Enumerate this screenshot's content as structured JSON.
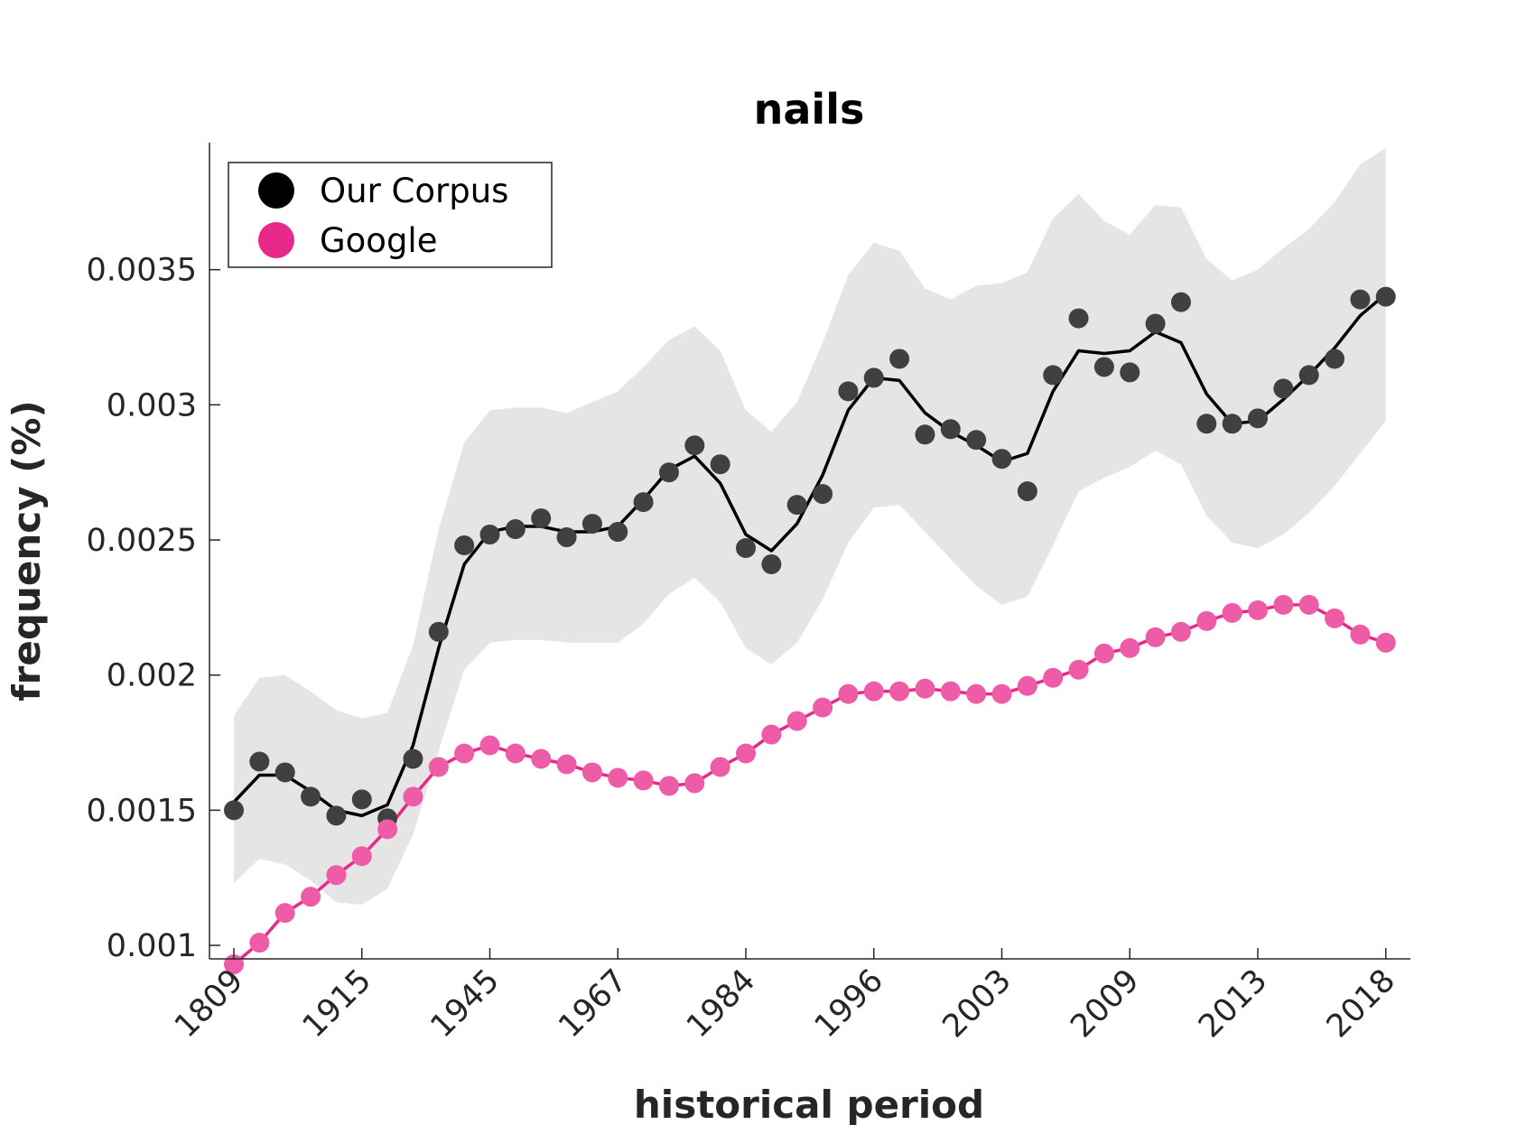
{
  "chart_data": {
    "type": "line",
    "title": "nails",
    "xlabel": "historical period",
    "ylabel": "frequency (%)",
    "x_tick_labels": [
      "1809",
      "1915",
      "1945",
      "1967",
      "1984",
      "1996",
      "2003",
      "2009",
      "2013",
      "2018"
    ],
    "y_ticks": [
      0.001,
      0.0015,
      0.002,
      0.0025,
      0.003,
      0.0035
    ],
    "y_tick_labels": [
      "0.001",
      "0.0015",
      "0.002",
      "0.0025",
      "0.003",
      "0.0035"
    ],
    "ylim": [
      0.00095,
      0.00397
    ],
    "legend_position": "top-left",
    "series": [
      {
        "name": "Our Corpus",
        "color": "#000000",
        "marker_color": "#404040",
        "points": [
          0.0015,
          0.00168,
          0.00164,
          0.00155,
          0.00148,
          0.00154,
          0.00147,
          0.00169,
          0.00216,
          0.00248,
          0.00252,
          0.00254,
          0.00258,
          0.00251,
          0.00256,
          0.00253,
          0.00264,
          0.00275,
          0.00285,
          0.00278,
          0.00247,
          0.00241,
          0.00263,
          0.00267,
          0.00305,
          0.0031,
          0.00317,
          0.00289,
          0.00291,
          0.00287,
          0.0028,
          0.00268,
          0.00311,
          0.00332,
          0.00314,
          0.00312,
          0.0033,
          0.00338,
          0.00293,
          0.00293,
          0.00295,
          0.00306,
          0.00311,
          0.00317,
          0.00339,
          0.0034
        ],
        "smoothed": [
          0.00153,
          0.00163,
          0.00163,
          0.00157,
          0.0015,
          0.00148,
          0.00152,
          0.00174,
          0.0021,
          0.00241,
          0.00253,
          0.00255,
          0.00255,
          0.00253,
          0.00253,
          0.00255,
          0.00265,
          0.00276,
          0.00281,
          0.00271,
          0.00252,
          0.00246,
          0.00256,
          0.00274,
          0.00298,
          0.0031,
          0.00309,
          0.00297,
          0.0029,
          0.00285,
          0.00279,
          0.00282,
          0.00305,
          0.0032,
          0.00319,
          0.0032,
          0.00327,
          0.00323,
          0.00304,
          0.00293,
          0.00294,
          0.00302,
          0.00311,
          0.00321,
          0.00333,
          0.00341
        ],
        "band_upper": [
          0.00185,
          0.00199,
          0.002,
          0.00194,
          0.00187,
          0.00184,
          0.00186,
          0.00211,
          0.00254,
          0.00286,
          0.00298,
          0.00299,
          0.00299,
          0.00297,
          0.00301,
          0.00305,
          0.00314,
          0.00324,
          0.00329,
          0.0032,
          0.00298,
          0.0029,
          0.00301,
          0.00323,
          0.00348,
          0.0036,
          0.00357,
          0.00343,
          0.00339,
          0.00344,
          0.00345,
          0.00349,
          0.00369,
          0.00378,
          0.00368,
          0.00363,
          0.00374,
          0.00373,
          0.00354,
          0.00346,
          0.0035,
          0.00358,
          0.00365,
          0.00375,
          0.00389,
          0.00395
        ],
        "band_lower": [
          0.00123,
          0.00132,
          0.0013,
          0.00124,
          0.00116,
          0.00115,
          0.00121,
          0.00141,
          0.00172,
          0.00202,
          0.00212,
          0.00213,
          0.00213,
          0.00212,
          0.00212,
          0.00212,
          0.00219,
          0.0023,
          0.00236,
          0.00227,
          0.0021,
          0.00204,
          0.00212,
          0.00228,
          0.00249,
          0.00262,
          0.00263,
          0.00253,
          0.00243,
          0.00233,
          0.00226,
          0.00229,
          0.00248,
          0.00268,
          0.00273,
          0.00277,
          0.00283,
          0.00278,
          0.00259,
          0.00249,
          0.00247,
          0.00252,
          0.0026,
          0.0027,
          0.00282,
          0.00294
        ]
      },
      {
        "name": "Google",
        "color": "#e7298a",
        "marker_color": "#ee5ca8",
        "points": [
          0.00093,
          0.00101,
          0.00112,
          0.00118,
          0.00126,
          0.00133,
          0.00143,
          0.00155,
          0.00166,
          0.00171,
          0.00174,
          0.00171,
          0.00169,
          0.00167,
          0.00164,
          0.00162,
          0.00161,
          0.00159,
          0.0016,
          0.00166,
          0.00171,
          0.00178,
          0.00183,
          0.00188,
          0.00193,
          0.00194,
          0.00194,
          0.00195,
          0.00194,
          0.00193,
          0.00193,
          0.00196,
          0.00199,
          0.00202,
          0.00208,
          0.0021,
          0.00214,
          0.00216,
          0.0022,
          0.00223,
          0.00224,
          0.00226,
          0.00226,
          0.00221,
          0.00215,
          0.00212
        ]
      }
    ]
  }
}
